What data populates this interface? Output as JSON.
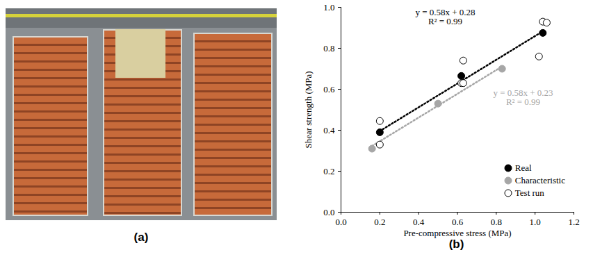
{
  "chart_data": {
    "type": "scatter",
    "x_label": "Pre-compressive stress (MPa)",
    "y_label": "Shear strength (MPa)",
    "xlim": [
      0,
      1.2
    ],
    "xticks": [
      {
        "value": 0,
        "label": "0.0"
      },
      0.2,
      0.4,
      0.6,
      0.8,
      {
        "value": 1,
        "label": "1.0"
      },
      1.2
    ],
    "ylim": [
      0,
      1
    ],
    "yticks": [
      {
        "value": 0,
        "label": "0.0"
      },
      0.2,
      0.4,
      0.6,
      0.8,
      {
        "value": 1,
        "label": "1.0"
      }
    ],
    "grid": false,
    "legend": "lower right",
    "series": [
      {
        "name": "Real",
        "color": "#000000",
        "marker": "circle",
        "x": [
          0.2,
          0.62,
          1.04
        ],
        "values": [
          0.39,
          0.665,
          0.875
        ]
      },
      {
        "name": "Characteristic",
        "color": "#a6a6a6",
        "marker": "circle",
        "x": [
          0.16,
          0.5,
          0.83
        ],
        "values": [
          0.31,
          0.53,
          0.7
        ]
      },
      {
        "name": "Test run",
        "color": "#000000",
        "marker": "open_circle",
        "x": [
          0.2,
          0.2,
          0.63,
          0.62,
          0.63,
          1.02,
          1.04,
          1.06
        ],
        "values": [
          0.445,
          0.33,
          0.74,
          0.63,
          0.63,
          0.76,
          0.93,
          0.925
        ]
      }
    ],
    "trendlines": [
      {
        "color": "#000000",
        "line_style": "dotted",
        "x": [
          0.2,
          1.04
        ],
        "values": [
          0.396,
          0.883
        ],
        "equation": "y = 0.58x + 0.28",
        "r_squared": "R² = 0.99"
      },
      {
        "color": "#a6a6a6",
        "line_style": "dotted",
        "x": [
          0.16,
          0.83
        ],
        "values": [
          0.323,
          0.711
        ],
        "equation": "y = 0.58x + 0.23",
        "r_squared": "R² = 0.99"
      }
    ]
  },
  "panel_labels": [
    "(a)",
    "(b)"
  ]
}
